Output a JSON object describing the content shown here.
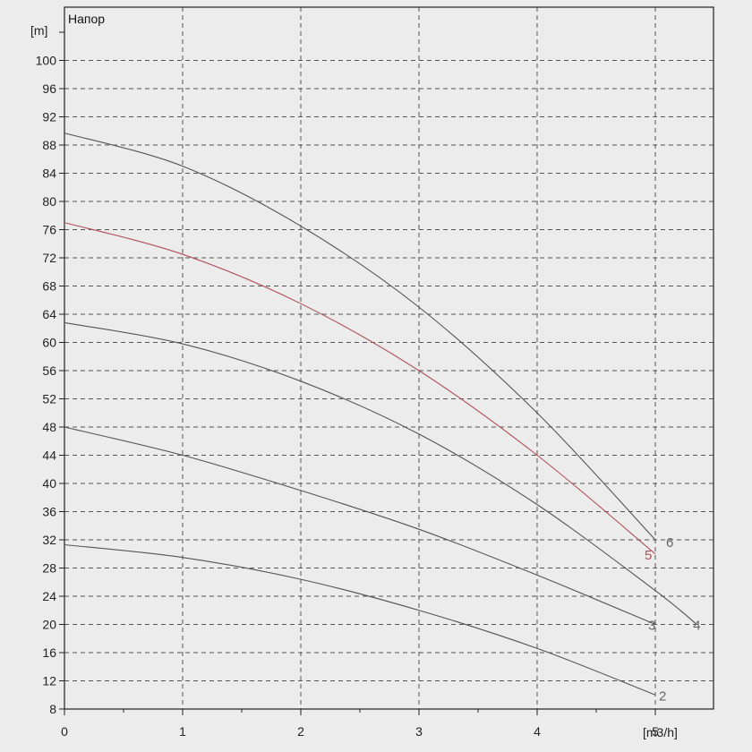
{
  "chart_data": {
    "type": "line",
    "title": "Напор",
    "ylabel": "[m]",
    "xlabel": "[m3/h]",
    "xlim": [
      0,
      5.5
    ],
    "ylim": [
      8,
      104
    ],
    "grid": true,
    "x_ticks": [
      0,
      1,
      2,
      3,
      4,
      5
    ],
    "y_ticks": [
      8,
      12,
      16,
      20,
      24,
      28,
      32,
      36,
      40,
      44,
      48,
      52,
      56,
      60,
      64,
      68,
      72,
      76,
      80,
      84,
      88,
      92,
      96,
      100
    ],
    "series": [
      {
        "name": "2",
        "color": "#555555",
        "x": [
          0,
          1,
          2,
          3,
          4,
          5
        ],
        "y": [
          31.3,
          29.5,
          26.4,
          22.0,
          16.6,
          10.0
        ]
      },
      {
        "name": "3",
        "color": "#555555",
        "x": [
          0,
          1,
          2,
          3,
          4,
          5
        ],
        "y": [
          48.0,
          44.0,
          39.0,
          33.5,
          27.0,
          20.0
        ]
      },
      {
        "name": "4",
        "color": "#555555",
        "x": [
          0,
          1,
          2,
          3,
          4,
          5,
          5.35
        ],
        "y": [
          62.8,
          59.8,
          54.5,
          47.0,
          37.0,
          24.8,
          20.0
        ]
      },
      {
        "name": "5",
        "color": "#b0505a",
        "x": [
          0,
          1,
          2,
          3,
          4,
          5
        ],
        "y": [
          77.0,
          72.5,
          65.5,
          56.0,
          44.0,
          30.0
        ]
      },
      {
        "name": "6",
        "color": "#555555",
        "x": [
          0,
          1,
          2,
          3,
          4,
          5
        ],
        "y": [
          89.7,
          85.0,
          76.5,
          65.0,
          50.0,
          32.0
        ]
      }
    ]
  }
}
